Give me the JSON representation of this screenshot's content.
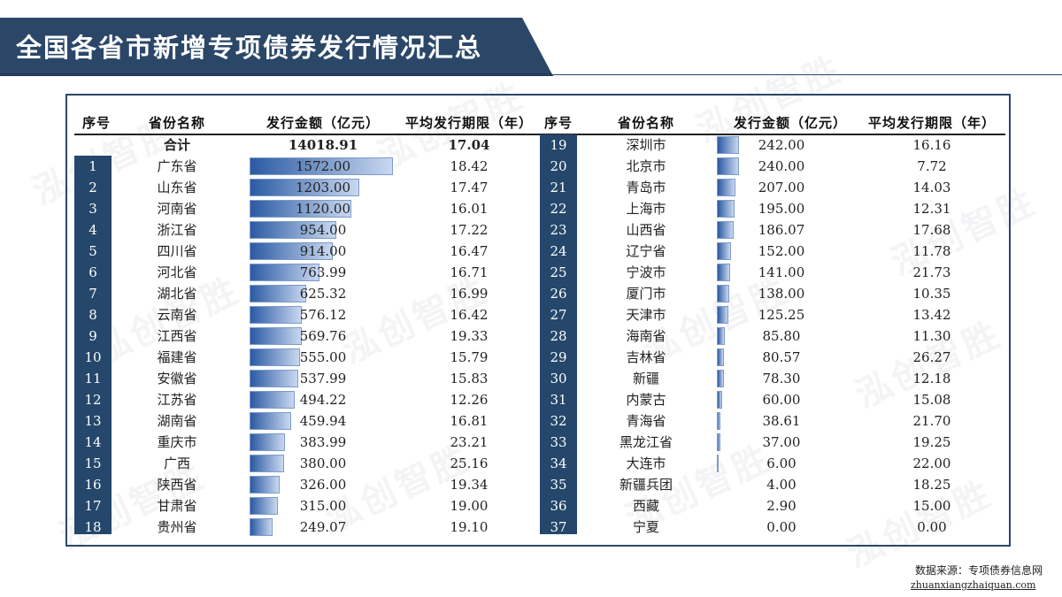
{
  "title": "全国各省市新增专项债券发行情况汇总",
  "headers": {
    "index": "序号",
    "province": "省份名称",
    "amount": "发行金额（亿元）",
    "avg_term": "平均发行期限（年）"
  },
  "total": {
    "label": "合计",
    "amount": "14018.91",
    "avg_term": "17.04"
  },
  "rows": [
    {
      "idx": "1",
      "province": "广东省",
      "amount": "1572.00",
      "term": "18.42"
    },
    {
      "idx": "2",
      "province": "山东省",
      "amount": "1203.00",
      "term": "17.47"
    },
    {
      "idx": "3",
      "province": "河南省",
      "amount": "1120.00",
      "term": "16.01"
    },
    {
      "idx": "4",
      "province": "浙江省",
      "amount": "954.00",
      "term": "17.22"
    },
    {
      "idx": "5",
      "province": "四川省",
      "amount": "914.00",
      "term": "16.47"
    },
    {
      "idx": "6",
      "province": "河北省",
      "amount": "763.99",
      "term": "16.71"
    },
    {
      "idx": "7",
      "province": "湖北省",
      "amount": "625.32",
      "term": "16.99"
    },
    {
      "idx": "8",
      "province": "云南省",
      "amount": "576.12",
      "term": "16.42"
    },
    {
      "idx": "9",
      "province": "江西省",
      "amount": "569.76",
      "term": "19.33"
    },
    {
      "idx": "10",
      "province": "福建省",
      "amount": "555.00",
      "term": "15.79"
    },
    {
      "idx": "11",
      "province": "安徽省",
      "amount": "537.99",
      "term": "15.83"
    },
    {
      "idx": "12",
      "province": "江苏省",
      "amount": "494.22",
      "term": "12.26"
    },
    {
      "idx": "13",
      "province": "湖南省",
      "amount": "459.94",
      "term": "16.81"
    },
    {
      "idx": "14",
      "province": "重庆市",
      "amount": "383.99",
      "term": "23.21"
    },
    {
      "idx": "15",
      "province": "广西",
      "amount": "380.00",
      "term": "25.16"
    },
    {
      "idx": "16",
      "province": "陕西省",
      "amount": "326.00",
      "term": "19.34"
    },
    {
      "idx": "17",
      "province": "甘肃省",
      "amount": "315.00",
      "term": "19.00"
    },
    {
      "idx": "18",
      "province": "贵州省",
      "amount": "249.07",
      "term": "19.10"
    },
    {
      "idx": "19",
      "province": "深圳市",
      "amount": "242.00",
      "term": "16.16"
    },
    {
      "idx": "20",
      "province": "北京市",
      "amount": "240.00",
      "term": "7.72"
    },
    {
      "idx": "21",
      "province": "青岛市",
      "amount": "207.00",
      "term": "14.03"
    },
    {
      "idx": "22",
      "province": "上海市",
      "amount": "195.00",
      "term": "12.31"
    },
    {
      "idx": "23",
      "province": "山西省",
      "amount": "186.07",
      "term": "17.68"
    },
    {
      "idx": "24",
      "province": "辽宁省",
      "amount": "152.00",
      "term": "11.78"
    },
    {
      "idx": "25",
      "province": "宁波市",
      "amount": "141.00",
      "term": "21.73"
    },
    {
      "idx": "26",
      "province": "厦门市",
      "amount": "138.00",
      "term": "10.35"
    },
    {
      "idx": "27",
      "province": "天津市",
      "amount": "125.25",
      "term": "13.42"
    },
    {
      "idx": "28",
      "province": "海南省",
      "amount": "85.80",
      "term": "11.30"
    },
    {
      "idx": "29",
      "province": "吉林省",
      "amount": "80.57",
      "term": "26.27"
    },
    {
      "idx": "30",
      "province": "新疆",
      "amount": "78.30",
      "term": "12.18"
    },
    {
      "idx": "31",
      "province": "内蒙古",
      "amount": "60.00",
      "term": "15.08"
    },
    {
      "idx": "32",
      "province": "青海省",
      "amount": "38.61",
      "term": "21.70"
    },
    {
      "idx": "33",
      "province": "黑龙江省",
      "amount": "37.00",
      "term": "19.25"
    },
    {
      "idx": "34",
      "province": "大连市",
      "amount": "6.00",
      "term": "22.00"
    },
    {
      "idx": "35",
      "province": "新疆兵团",
      "amount": "4.00",
      "term": "18.25"
    },
    {
      "idx": "36",
      "province": "西藏",
      "amount": "2.90",
      "term": "15.00"
    },
    {
      "idx": "37",
      "province": "宁夏",
      "amount": "0.00",
      "term": "0.00"
    }
  ],
  "watermark": "泓创智胜",
  "footer": {
    "source": "数据来源：专项债券信息网",
    "url": "zhuanxiangzhaiquan.com"
  },
  "colors": {
    "banner": "#2b4768",
    "index_bg": "#24476b",
    "bar_dark": "#2b5aa3",
    "bar_light": "#c9d8f0"
  }
}
